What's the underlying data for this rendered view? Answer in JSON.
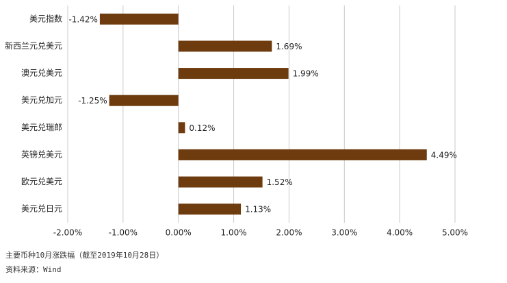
{
  "chart_data": {
    "type": "hbar",
    "categories": [
      "美元指数",
      "新西兰元兑美元",
      "澳元兑美元",
      "美元兑加元",
      "美元兑瑞郎",
      "英镑兑美元",
      "欧元兑美元",
      "美元兑日元"
    ],
    "values": [
      -1.42,
      1.69,
      1.99,
      -1.25,
      0.12,
      4.49,
      1.52,
      1.13
    ],
    "value_labels": [
      "-1.42%",
      "1.69%",
      "1.99%",
      "-1.25%",
      "0.12%",
      "4.49%",
      "1.52%",
      "1.13%"
    ],
    "color": "#6e3b0e",
    "xlim": [
      -2,
      5
    ],
    "xticks": [
      {
        "value": -2,
        "label": "-2.00%"
      },
      {
        "value": -1,
        "label": "-1.00%"
      },
      {
        "value": 0,
        "label": "0.00%"
      },
      {
        "value": 1,
        "label": "1.00%"
      },
      {
        "value": 2,
        "label": "2.00%"
      },
      {
        "value": 3,
        "label": "3.00%"
      },
      {
        "value": 4,
        "label": "4.00%"
      },
      {
        "value": 5,
        "label": "5.00%"
      }
    ],
    "grid": true,
    "caption": "主要币种10月涨跌幅（截至2019年10月28日）",
    "source": "资料来源：Wind"
  }
}
